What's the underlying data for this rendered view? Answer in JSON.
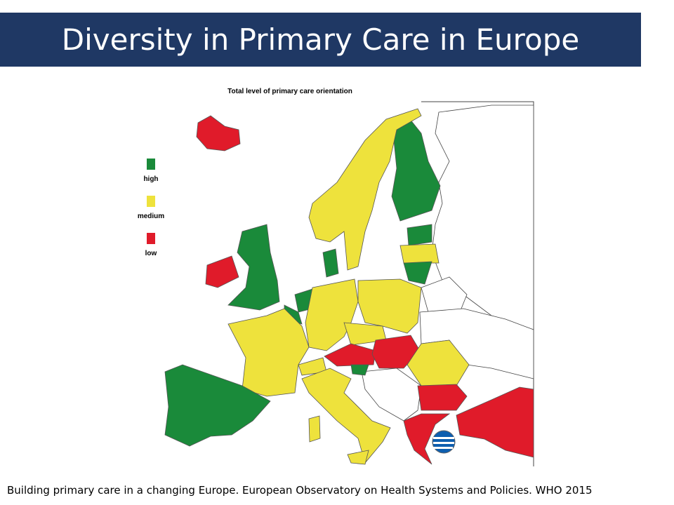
{
  "header": {
    "title": "Diversity in Primary Care in Europe"
  },
  "map": {
    "title": "Total level of primary care orientation",
    "legend": [
      {
        "label": "high",
        "color": "#1a8a3a"
      },
      {
        "label": "medium",
        "color": "#eee23c"
      },
      {
        "label": "low",
        "color": "#e01b2a"
      }
    ]
  },
  "footer": {
    "source": "Building primary care in a changing Europe. European Observatory on Health Systems and Policies. WHO 2015"
  }
}
